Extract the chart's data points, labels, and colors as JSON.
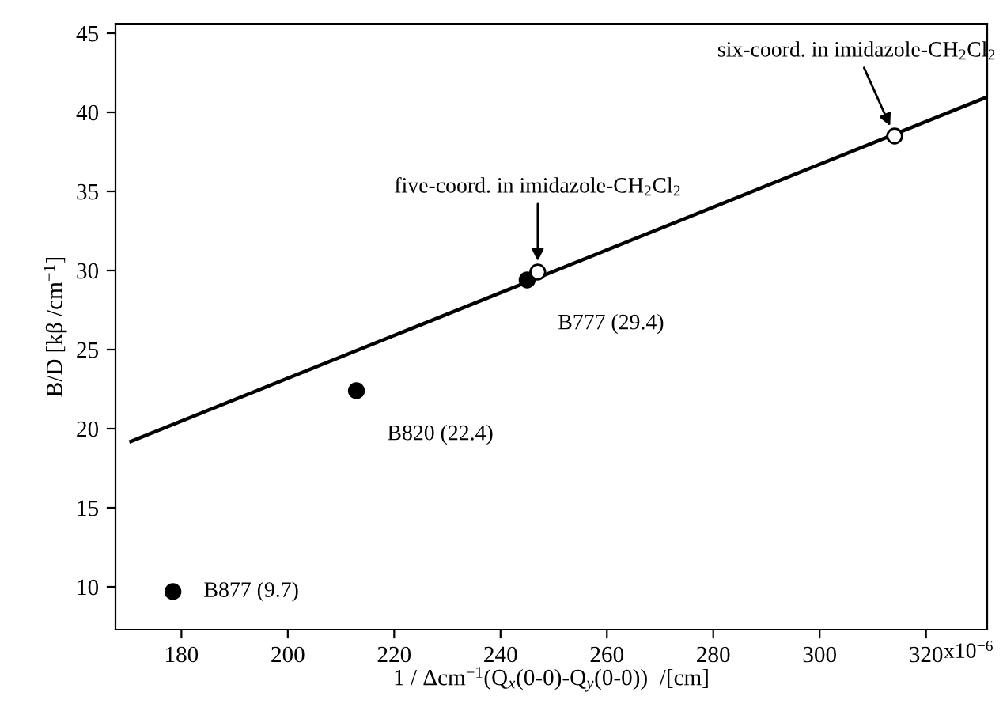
{
  "chart_data": {
    "type": "scatter",
    "xlabel": "1 / Δcm$^{−1}$(Q$_{x}$(0-0)-Q$_{y}$(0-0))  /[cm]",
    "ylabel": "B/D [kβ /cm$^{−1}$]",
    "xlim": [
      167.6,
      331.5
    ],
    "ylim": [
      7.3,
      45.6
    ],
    "xticks": [
      180,
      200,
      220,
      240,
      260,
      280,
      300,
      320
    ],
    "yticks": [
      10,
      15,
      20,
      25,
      30,
      35,
      40,
      45
    ],
    "grid": false,
    "legend": false,
    "series": [
      {
        "color": "#000000",
        "marker": "circle",
        "x": [
          178.4,
          212.9,
          245.0
        ],
        "values": [
          9.7,
          22.4,
          29.4
        ]
      },
      {
        "color": "#ffffff",
        "marker": "circle",
        "x": [
          247.0,
          314.1
        ],
        "values": [
          29.9,
          38.5
        ]
      },
      {
        "type": "line",
        "color": "#000000",
        "marker": "none",
        "line_style": "solid",
        "x": [
          170.5,
          331.0
        ],
        "values": [
          19.2,
          40.9
        ]
      }
    ],
    "annotations": [
      "x10$^{−6}$",
      {
        "text": "B877 (9.7)",
        "x": 178.4,
        "y": 9.7
      },
      {
        "text": "B820 (22.4)",
        "x": 212.9,
        "y": 22.4
      },
      {
        "text": "B777 (29.4)",
        "x": 245.0,
        "y": 29.4
      },
      {
        "text": "five-coord. in imidazole-CH$_{2}$Cl$_{2}$",
        "x": 247.0,
        "y": 29.9
      },
      {
        "text": "six-coord. in imidazole-CH$_{2}$Cl$_{2}$",
        "x": 314.1,
        "y": 38.5
      }
    ]
  }
}
